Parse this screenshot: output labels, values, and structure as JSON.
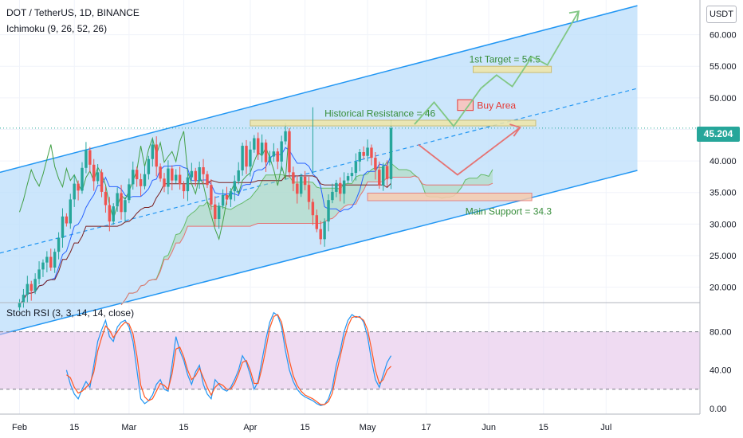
{
  "header": {
    "symbol_line": "DOT / TetherUS, 1D, BINANCE",
    "indicator_line": "Ichimoku (9, 26, 52, 26)"
  },
  "currency_badge": "USDT",
  "last_price": "45.204",
  "rsi_pane": {
    "title": "Stoch RSI (3, 3, 14, 14, close)"
  },
  "colors": {
    "up": "#26a69a",
    "down": "#ef5350",
    "channel": "#2196f3",
    "channel_fill": "#bbdefb",
    "tenkan": "#2962ff",
    "kijun": "#7b1f1f",
    "chikou": "#43a047",
    "cloud": "#a5d6a7",
    "rsi_k": "#2196f3",
    "rsi_d": "#ff5722",
    "rsi_band": "#e1bee7",
    "projection": "#81c784"
  },
  "chart_data": [
    {
      "type": "candlestick",
      "title": "DOT / TetherUS, 1D, BINANCE",
      "x_tick_labels": [
        "Feb",
        "15",
        "Mar",
        "15",
        "Apr",
        "15",
        "May",
        "17",
        "Jun",
        "15",
        "Jul"
      ],
      "y_tick_labels": [
        "20.000",
        "25.000",
        "30.000",
        "35.000",
        "40.000",
        "45.000",
        "50.000",
        "55.000",
        "60.000"
      ],
      "ylim": [
        17.8,
        65.5
      ],
      "xlim_days": [
        -5,
        174
      ],
      "log_scale": false,
      "grid": true,
      "last_price": 45.204,
      "closes": [
        17.6,
        18.8,
        20.5,
        19.4,
        21.3,
        22.8,
        23.9,
        24.8,
        23.1,
        25.6,
        27.8,
        31.2,
        30.1,
        33.9,
        36.4,
        35.3,
        38.9,
        41.7,
        39.4,
        36.8,
        38.2,
        35.1,
        33.0,
        30.4,
        32.8,
        34.9,
        31.9,
        33.8,
        36.3,
        38.6,
        37.1,
        36.0,
        37.9,
        40.3,
        42.6,
        39.1,
        37.2,
        35.9,
        38.8,
        36.9,
        37.8,
        36.3,
        35.2,
        37.4,
        38.4,
        36.8,
        39.0,
        37.9,
        36.2,
        33.1,
        30.8,
        32.9,
        34.6,
        33.9,
        35.2,
        36.8,
        38.5,
        42.4,
        39.1,
        41.8,
        43.6,
        41.0,
        42.9,
        39.8,
        40.7,
        41.5,
        39.9,
        43.1,
        44.7,
        38.2,
        36.4,
        34.8,
        37.5,
        36.2,
        33.5,
        31.4,
        29.2,
        27.6,
        30.4,
        33.8,
        35.1,
        36.5,
        34.8,
        36.9,
        37.6,
        38.1,
        39.9,
        41.4,
        40.8,
        42.1,
        40.5,
        38.6,
        36.1,
        39.2,
        37.1,
        45.204
      ],
      "annotations": [
        "Historical Resistance = 46",
        "1st Target = 54.5",
        "Buy Area",
        "Main Support = 34.3"
      ],
      "levels": {
        "historical_resistance": 46,
        "first_target": 54.5,
        "main_support": 34.3
      }
    },
    {
      "type": "line",
      "title": "Stoch RSI (3, 3, 14, 14, close)",
      "y_tick_labels": [
        "0.00",
        "40.00",
        "80.00"
      ],
      "ylim": [
        -6,
        108
      ],
      "bands": [
        20,
        80
      ],
      "series": [
        {
          "values": [
            40,
            25,
            15,
            10,
            20,
            28,
            22,
            45,
            70,
            82,
            92,
            75,
            70,
            85,
            90,
            92,
            85,
            70,
            40,
            10,
            5,
            8,
            14,
            25,
            30,
            20,
            18,
            45,
            75,
            60,
            50,
            35,
            25,
            38,
            45,
            25,
            15,
            10,
            30,
            25,
            20,
            18,
            22,
            30,
            40,
            55,
            48,
            35,
            20,
            28,
            50,
            72,
            90,
            100,
            97,
            85,
            60,
            40,
            28,
            20,
            15,
            12,
            10,
            8,
            5,
            3,
            4,
            10,
            22,
            45,
            60,
            80,
            92,
            98,
            95,
            96,
            90,
            75,
            50,
            30,
            22,
            35,
            48,
            55
          ]
        },
        {
          "values": [
            35,
            32,
            22,
            16,
            18,
            22,
            26,
            38,
            60,
            74,
            86,
            82,
            74,
            80,
            86,
            90,
            88,
            78,
            55,
            24,
            12,
            8,
            10,
            18,
            26,
            24,
            20,
            36,
            62,
            64,
            54,
            40,
            30,
            34,
            42,
            32,
            22,
            14,
            22,
            26,
            24,
            20,
            20,
            26,
            36,
            48,
            50,
            40,
            26,
            26,
            42,
            62,
            84,
            96,
            98,
            90,
            70,
            50,
            34,
            24,
            18,
            14,
            12,
            10,
            7,
            4,
            4,
            7,
            16,
            36,
            54,
            72,
            86,
            95,
            96,
            95,
            92,
            82,
            62,
            40,
            26,
            30,
            40,
            44
          ]
        }
      ]
    }
  ]
}
